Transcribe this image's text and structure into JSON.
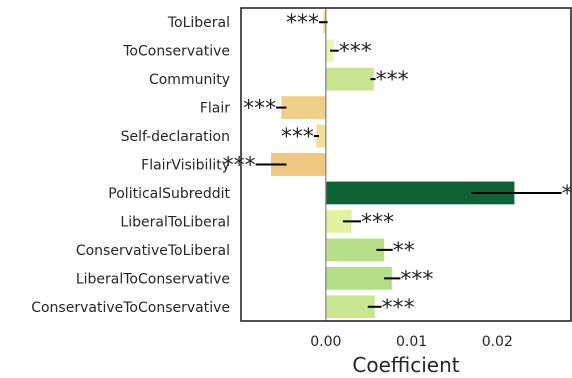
{
  "chart_data": {
    "type": "bar",
    "orientation": "horizontal",
    "xlabel": "Coefficient",
    "ylabel": "",
    "xlim": [
      -0.0099,
      0.0286
    ],
    "xticks": [
      0.0,
      0.01,
      0.02
    ],
    "xtick_labels": [
      "0.00",
      "0.01",
      "0.02"
    ],
    "grid": false,
    "zero_line": true,
    "categories": [
      "ToLiberal",
      "ToConservative",
      "Community",
      "Flair",
      "Self-declaration",
      "FlairVisibility",
      "PoliticalSubreddit",
      "LiberalToLiberal",
      "ConservativeToLiberal",
      "LiberalToConservative",
      "ConservativeToConservative"
    ],
    "values": [
      -0.0003,
      0.0009,
      0.0056,
      -0.0052,
      -0.0011,
      -0.0064,
      0.022,
      0.003,
      0.0068,
      0.0077,
      0.0057
    ],
    "error_low": [
      -0.0008,
      0.0005,
      0.0052,
      -0.0058,
      -0.0014,
      -0.0082,
      0.017,
      0.002,
      0.0059,
      0.0068,
      0.0049
    ],
    "error_high": [
      0.0002,
      0.0015,
      0.0058,
      -0.0046,
      -0.0008,
      -0.0046,
      0.0275,
      0.0041,
      0.0078,
      0.0087,
      0.0065
    ],
    "significance": [
      "***",
      "***",
      "***",
      "***",
      "***",
      "***",
      "***",
      "***",
      "**",
      "***",
      "***"
    ],
    "bar_colors": [
      "#f1df98",
      "#edf6ae",
      "#c7e58f",
      "#f0d088",
      "#f1df98",
      "#efc77e",
      "#0e6334",
      "#e3f29f",
      "#b7df88",
      "#b3dd86",
      "#c9e690"
    ]
  }
}
